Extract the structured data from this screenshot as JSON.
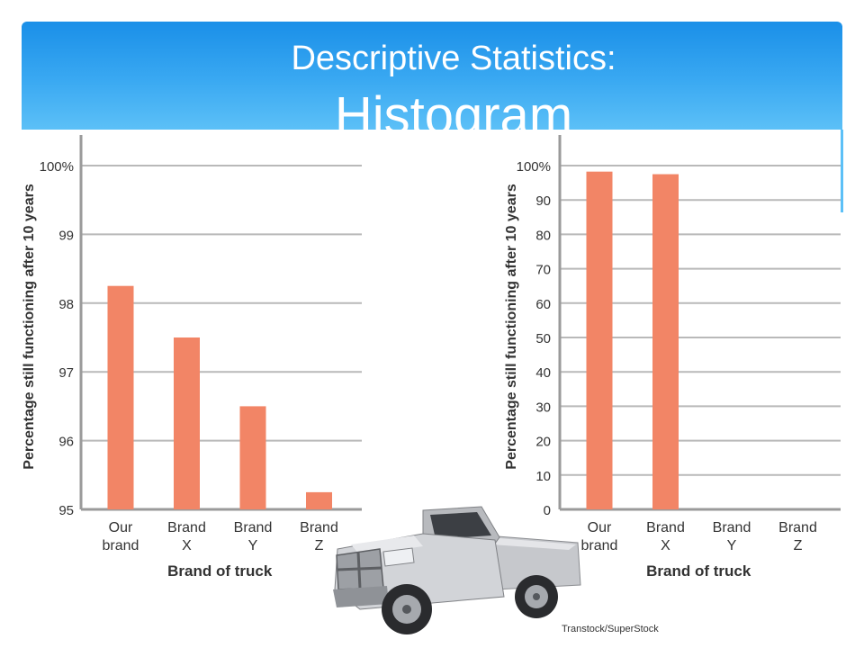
{
  "header": {
    "title_line1": "Descriptive Statistics:",
    "title_line2": "Histogram"
  },
  "colors": {
    "bar": "#f28566",
    "grid": "#b9b9b9",
    "axis": "#9a9a9a",
    "banner_top": "#1a8fe8",
    "banner_bottom": "#5cc0f7"
  },
  "chart_data": [
    {
      "type": "bar",
      "categories": [
        "Our brand",
        "Brand X",
        "Brand Y",
        "Brand Z"
      ],
      "category_lines": [
        [
          "Our",
          "brand"
        ],
        [
          "Brand",
          "X"
        ],
        [
          "Brand",
          "Y"
        ],
        [
          "Brand",
          "Z"
        ]
      ],
      "values": [
        98.25,
        97.5,
        96.5,
        95.25
      ],
      "ylim": [
        95,
        100
      ],
      "yticks": [
        95,
        96,
        97,
        98,
        99,
        100
      ],
      "ytick_labels": [
        "95",
        "96",
        "97",
        "98",
        "99",
        "100%"
      ],
      "xlabel": "Brand of truck",
      "ylabel": "Percentage still functioning after 10 years",
      "grid": true
    },
    {
      "type": "bar",
      "categories": [
        "Our brand",
        "Brand X",
        "Brand Y",
        "Brand Z"
      ],
      "category_lines": [
        [
          "Our",
          "brand"
        ],
        [
          "Brand",
          "X"
        ],
        [
          "Brand",
          "Y"
        ],
        [
          "Brand",
          "Z"
        ]
      ],
      "values": [
        98.25,
        97.5,
        0,
        0
      ],
      "ylim": [
        0,
        100
      ],
      "yticks": [
        0,
        10,
        20,
        30,
        40,
        50,
        60,
        70,
        80,
        90,
        100
      ],
      "ytick_labels": [
        "0",
        "10",
        "20",
        "30",
        "40",
        "50",
        "60",
        "70",
        "80",
        "90",
        "100%"
      ],
      "xlabel": "Brand of truck",
      "ylabel": "Percentage still functioning after 10 years",
      "grid": true
    }
  ],
  "photo": {
    "credit": "Transtock/SuperStock"
  }
}
